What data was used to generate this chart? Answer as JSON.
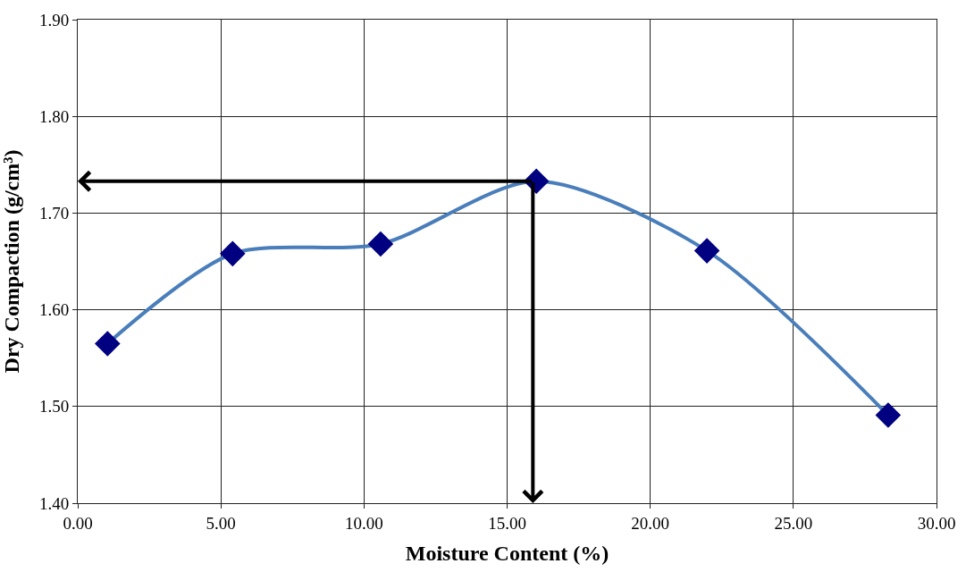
{
  "chart_data": {
    "type": "line",
    "xlabel": "Moisture Content (%)",
    "ylabel": "Dry Compaction (g/cm³)",
    "x": [
      1.04,
      5.41,
      10.58,
      16.02,
      21.98,
      28.31
    ],
    "series": [
      {
        "color": "#4a7ebb",
        "colors": [
          "#000080",
          "#000080",
          "#000080",
          "#000080",
          "#000080",
          "#000080"
        ],
        "values": [
          1.565,
          1.658,
          1.668,
          1.733,
          1.661,
          1.491
        ]
      }
    ],
    "marker": "diamond",
    "line_style": "solid",
    "grid": true,
    "xlim": [
      0,
      30
    ],
    "xticks": [
      {
        "value": 0,
        "label": "0.00"
      },
      {
        "value": 5,
        "label": "5.00"
      },
      {
        "value": 10,
        "label": "10.00"
      },
      {
        "value": 15,
        "label": "15.00"
      },
      {
        "value": 20,
        "label": "20.00"
      },
      {
        "value": 25,
        "label": "25.00"
      },
      {
        "value": 30,
        "label": "30.00"
      }
    ],
    "ylim": [
      1.4,
      1.9
    ],
    "yticks": [
      {
        "value": 1.4,
        "label": "1.40"
      },
      {
        "value": 1.5,
        "label": "1.50"
      },
      {
        "value": 1.6,
        "label": "1.60"
      },
      {
        "value": 1.7,
        "label": "1.70"
      },
      {
        "value": 1.8,
        "label": "1.80"
      },
      {
        "value": 1.9,
        "label": "1.90"
      }
    ],
    "ref_lines": [
      {
        "axis": "x",
        "value": 15.9,
        "color": "#000000"
      },
      {
        "axis": "y",
        "value": 1.733,
        "color": "#000000"
      }
    ]
  }
}
